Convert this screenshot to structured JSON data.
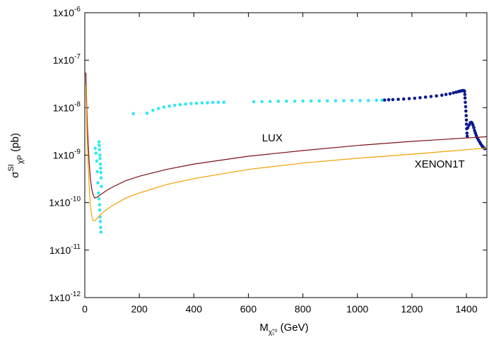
{
  "chart_data": {
    "type": "scatter",
    "x_axis": {
      "min": 0,
      "max": 1475,
      "ticks": [
        0,
        200,
        400,
        600,
        800,
        1000,
        1200,
        1400
      ],
      "tick_labels": [
        "0",
        "200",
        "400",
        "600",
        "800",
        "1000",
        "1200",
        "1400"
      ],
      "label": {
        "main": "M",
        "sub": "χ̃₁⁰",
        "unit": " (GeV)"
      }
    },
    "y_axis": {
      "scale": "log",
      "min": 1e-12,
      "max": 1e-06,
      "ticks": [
        1e-12,
        1e-11,
        1e-10,
        1e-09,
        1e-08,
        1e-07,
        1e-06
      ],
      "tick_labels": [
        {
          "base": "1x10",
          "exp": "-12"
        },
        {
          "base": "1x10",
          "exp": "-11"
        },
        {
          "base": "1x10",
          "exp": "-10"
        },
        {
          "base": "1x10",
          "exp": "-9"
        },
        {
          "base": "1x10",
          "exp": "-8"
        },
        {
          "base": "1x10",
          "exp": "-7"
        },
        {
          "base": "1x10",
          "exp": "-6"
        }
      ],
      "label": {
        "main": "σ",
        "sup": "SI",
        "sub": "χP",
        "unit": " (pb)"
      }
    },
    "grid": false,
    "series": [
      {
        "kind": "points",
        "color": "#33e8f0",
        "points": [
          [
            38,
            1.4e-09
          ],
          [
            41,
            1.1e-09
          ],
          [
            44,
            7.5e-10
          ],
          [
            46,
            4.5e-10
          ],
          [
            48,
            2.6e-10
          ],
          [
            50,
            1.6e-10
          ],
          [
            52,
            1.2e-10
          ],
          [
            54,
            9e-11
          ],
          [
            55,
            7e-11
          ],
          [
            56,
            5e-11
          ],
          [
            57,
            4e-11
          ],
          [
            58,
            3e-11
          ],
          [
            59,
            2.4e-11
          ],
          [
            52,
            1.9e-09
          ],
          [
            53,
            1.6e-09
          ],
          [
            54,
            1.3e-09
          ],
          [
            55,
            1e-09
          ],
          [
            56,
            8.5e-10
          ],
          [
            57,
            6.5e-10
          ],
          [
            58,
            5.3e-10
          ],
          [
            59,
            4.3e-10
          ],
          [
            60,
            3.3e-10
          ],
          [
            61,
            2.2e-10
          ],
          [
            178,
            7.5e-09
          ],
          [
            228,
            7.6e-09
          ],
          [
            250,
            8.8e-09
          ],
          [
            270,
            9.6e-09
          ],
          [
            290,
            1.03e-08
          ],
          [
            310,
            1.08e-08
          ],
          [
            330,
            1.12e-08
          ],
          [
            350,
            1.16e-08
          ],
          [
            370,
            1.19e-08
          ],
          [
            390,
            1.22e-08
          ],
          [
            410,
            1.24e-08
          ],
          [
            430,
            1.26e-08
          ],
          [
            450,
            1.27e-08
          ],
          [
            470,
            1.29e-08
          ],
          [
            490,
            1.3e-08
          ],
          [
            510,
            1.3e-08
          ],
          [
            620,
            1.33e-08
          ],
          [
            650,
            1.34e-08
          ],
          [
            680,
            1.35e-08
          ],
          [
            710,
            1.36e-08
          ],
          [
            740,
            1.37e-08
          ],
          [
            770,
            1.37e-08
          ],
          [
            800,
            1.38e-08
          ],
          [
            830,
            1.38e-08
          ],
          [
            860,
            1.39e-08
          ],
          [
            890,
            1.39e-08
          ],
          [
            920,
            1.4e-08
          ],
          [
            950,
            1.4e-08
          ],
          [
            980,
            1.41e-08
          ],
          [
            1010,
            1.41e-08
          ],
          [
            1040,
            1.42e-08
          ],
          [
            1070,
            1.43e-08
          ],
          [
            1090,
            1.44e-08
          ]
        ]
      },
      {
        "kind": "points",
        "color": "#0a1a8c",
        "points": [
          [
            1100,
            1.45e-08
          ],
          [
            1115,
            1.47e-08
          ],
          [
            1130,
            1.48e-08
          ],
          [
            1150,
            1.5e-08
          ],
          [
            1170,
            1.52e-08
          ],
          [
            1190,
            1.55e-08
          ],
          [
            1210,
            1.58e-08
          ],
          [
            1230,
            1.62e-08
          ],
          [
            1250,
            1.67e-08
          ],
          [
            1270,
            1.72e-08
          ],
          [
            1290,
            1.77e-08
          ],
          [
            1310,
            1.83e-08
          ],
          [
            1325,
            1.9e-08
          ],
          [
            1340,
            1.97e-08
          ],
          [
            1352,
            2.05e-08
          ],
          [
            1362,
            2.12e-08
          ],
          [
            1370,
            2.18e-08
          ],
          [
            1376,
            2.22e-08
          ],
          [
            1380,
            2.25e-08
          ],
          [
            1384,
            2.28e-08
          ],
          [
            1388,
            2.3e-08
          ],
          [
            1391,
            2.28e-08
          ],
          [
            1393,
            2.2e-08
          ],
          [
            1394,
            1.9e-08
          ],
          [
            1395,
            1.6e-08
          ],
          [
            1396,
            1.3e-08
          ],
          [
            1397,
            1.05e-08
          ],
          [
            1398,
            8.5e-09
          ],
          [
            1399,
            6.8e-09
          ],
          [
            1400,
            5.5e-09
          ],
          [
            1400,
            4.5e-09
          ],
          [
            1401,
            3.6e-09
          ],
          [
            1402,
            2.9e-09
          ],
          [
            1403,
            2.5e-09
          ],
          [
            1405,
            3.8e-09
          ],
          [
            1410,
            4.3e-09
          ],
          [
            1414,
            4.8e-09
          ],
          [
            1418,
            4.9e-09
          ],
          [
            1421,
            4.7e-09
          ],
          [
            1424,
            4.3e-09
          ],
          [
            1427,
            3.8e-09
          ],
          [
            1430,
            3.3e-09
          ],
          [
            1433,
            2.9e-09
          ],
          [
            1436,
            2.6e-09
          ],
          [
            1440,
            2.3e-09
          ],
          [
            1444,
            2.1e-09
          ],
          [
            1448,
            1.9e-09
          ],
          [
            1452,
            1.75e-09
          ],
          [
            1456,
            1.6e-09
          ],
          [
            1460,
            1.5e-09
          ],
          [
            1464,
            1.42e-09
          ],
          [
            1468,
            1.37e-09
          ]
        ]
      },
      {
        "kind": "line",
        "name": "LUX",
        "color": "#7b1018",
        "points": [
          [
            4,
            5.5e-08
          ],
          [
            8,
            7e-09
          ],
          [
            12,
            2e-09
          ],
          [
            16,
            7e-10
          ],
          [
            20,
            3.5e-10
          ],
          [
            25,
            2e-10
          ],
          [
            30,
            1.5e-10
          ],
          [
            36,
            1.25e-10
          ],
          [
            45,
            1.3e-10
          ],
          [
            60,
            1.5e-10
          ],
          [
            80,
            1.8e-10
          ],
          [
            100,
            2.1e-10
          ],
          [
            150,
            2.9e-10
          ],
          [
            200,
            3.6e-10
          ],
          [
            300,
            5e-10
          ],
          [
            400,
            6.5e-10
          ],
          [
            600,
            9.5e-10
          ],
          [
            800,
            1.25e-09
          ],
          [
            1000,
            1.6e-09
          ],
          [
            1200,
            1.95e-09
          ],
          [
            1400,
            2.3e-09
          ],
          [
            1475,
            2.45e-09
          ]
        ]
      },
      {
        "kind": "line",
        "name": "XENON1T",
        "color": "#f2a100",
        "points": [
          [
            4,
            3e-08
          ],
          [
            8,
            3e-09
          ],
          [
            12,
            7e-10
          ],
          [
            16,
            2.2e-10
          ],
          [
            20,
            9e-11
          ],
          [
            25,
            5.5e-11
          ],
          [
            30,
            4.2e-11
          ],
          [
            38,
            4.2e-11
          ],
          [
            50,
            5e-11
          ],
          [
            70,
            6.5e-11
          ],
          [
            100,
            8.5e-11
          ],
          [
            150,
            1.25e-10
          ],
          [
            200,
            1.6e-10
          ],
          [
            300,
            2.4e-10
          ],
          [
            400,
            3.2e-10
          ],
          [
            600,
            5e-10
          ],
          [
            800,
            6.8e-10
          ],
          [
            1000,
            8.6e-10
          ],
          [
            1200,
            1.05e-09
          ],
          [
            1400,
            1.3e-09
          ],
          [
            1475,
            1.42e-09
          ]
        ]
      }
    ],
    "annotations": [
      {
        "text": "LUX",
        "x": 650,
        "y": 1.95e-09
      },
      {
        "text": "XENON1T",
        "x": 1210,
        "y": 5.5e-10
      }
    ]
  }
}
